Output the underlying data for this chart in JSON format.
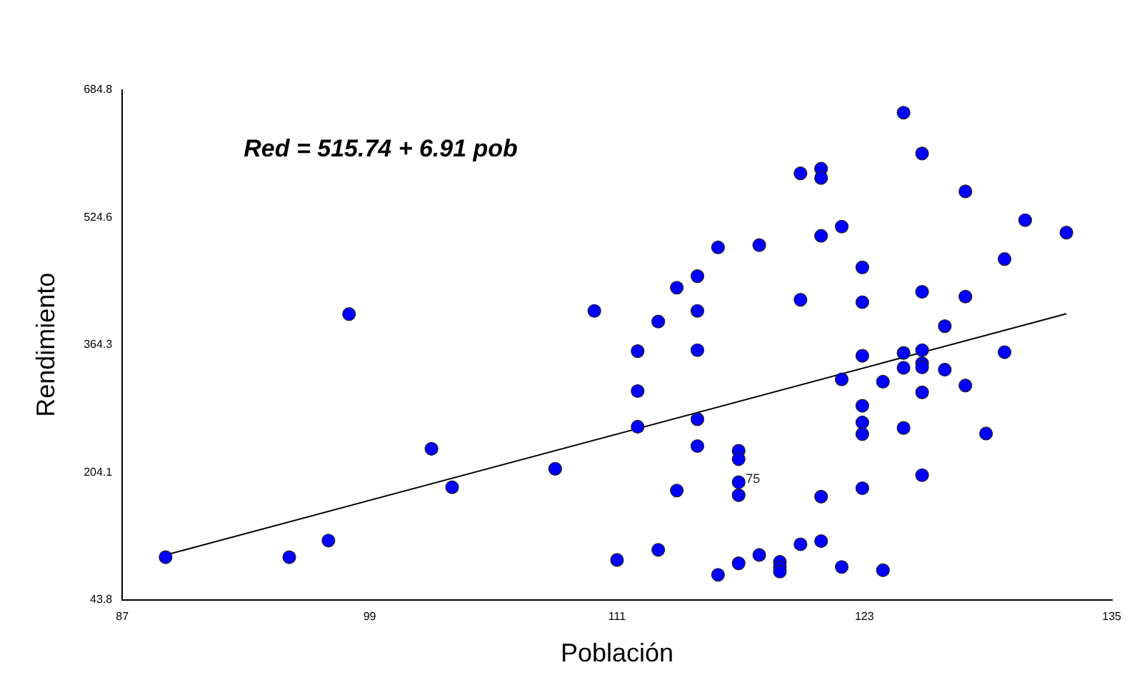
{
  "chart_data": {
    "type": "scatter",
    "xlabel": "Población",
    "ylabel": "Rendimiento",
    "annotations": [
      "Red = 515.74 + 6.91 pob",
      {
        "text": "75",
        "x": 116.9,
        "y": 191.6
      }
    ],
    "xlim": [
      87,
      135
    ],
    "xticks": [
      87,
      99,
      111,
      123,
      135
    ],
    "ylim": [
      43.8,
      684.8
    ],
    "yticks": [
      43.8,
      204.1,
      364.3,
      524.6,
      684.8
    ],
    "grid": false,
    "legend": false,
    "marker": "circle",
    "series": [
      {
        "color": "#0000ff",
        "x": [
          89.1,
          95.1,
          97.0,
          98.0,
          102.0,
          103.0,
          108.0,
          109.9,
          124.9,
          125.8,
          119.9,
          120.9,
          120.9,
          127.9,
          130.8,
          132.8,
          121.9,
          120.9,
          115.9,
          117.9,
          122.9,
          129.8,
          114.9,
          113.9,
          113.0,
          114.9,
          119.9,
          122.9,
          125.8,
          127.9,
          126.9,
          112.0,
          114.9,
          122.9,
          124.9,
          125.8,
          129.8,
          124.9,
          125.8,
          125.8,
          126.9,
          121.9,
          123.9,
          127.9,
          112.0,
          122.9,
          125.8,
          122.9,
          122.9,
          124.9,
          128.9,
          112.0,
          114.9,
          114.9,
          116.9,
          116.9,
          116.9,
          116.9,
          113.9,
          120.9,
          122.9,
          125.8,
          111.0,
          113.0,
          115.9,
          116.9,
          117.9,
          118.9,
          118.9,
          118.9,
          119.9,
          120.9,
          121.9,
          123.9
        ],
        "values": [
          97.3,
          97.3,
          118.2,
          403.0,
          233.6,
          185.2,
          208.4,
          407.0,
          656.3,
          605.0,
          580.0,
          585.8,
          574.2,
          557.3,
          521.1,
          505.4,
          513.0,
          501.4,
          486.8,
          489.7,
          461.7,
          472.2,
          450.7,
          436.2,
          393.6,
          407.0,
          421.0,
          418.0,
          431.0,
          425.0,
          387.8,
          356.4,
          357.6,
          350.6,
          354.1,
          357.6,
          355.1,
          335.4,
          341.2,
          336.0,
          333.1,
          320.9,
          317.9,
          313.2,
          306.2,
          287.7,
          304.5,
          266.7,
          252.1,
          259.8,
          252.8,
          261.3,
          270.8,
          237.0,
          231.1,
          220.6,
          191.6,
          175.2,
          181.1,
          173.4,
          184.0,
          200.4,
          93.8,
          106.5,
          75.1,
          89.6,
          100.1,
          91.3,
          85.0,
          79.2,
          113.5,
          117.5,
          85.0,
          80.9
        ]
      },
      {
        "type": "line",
        "color": "#000000",
        "marker": "none",
        "line_style": "solid",
        "x": [
          89.1,
          132.8
        ],
        "values": [
          100.0,
          403.5
        ]
      }
    ]
  }
}
